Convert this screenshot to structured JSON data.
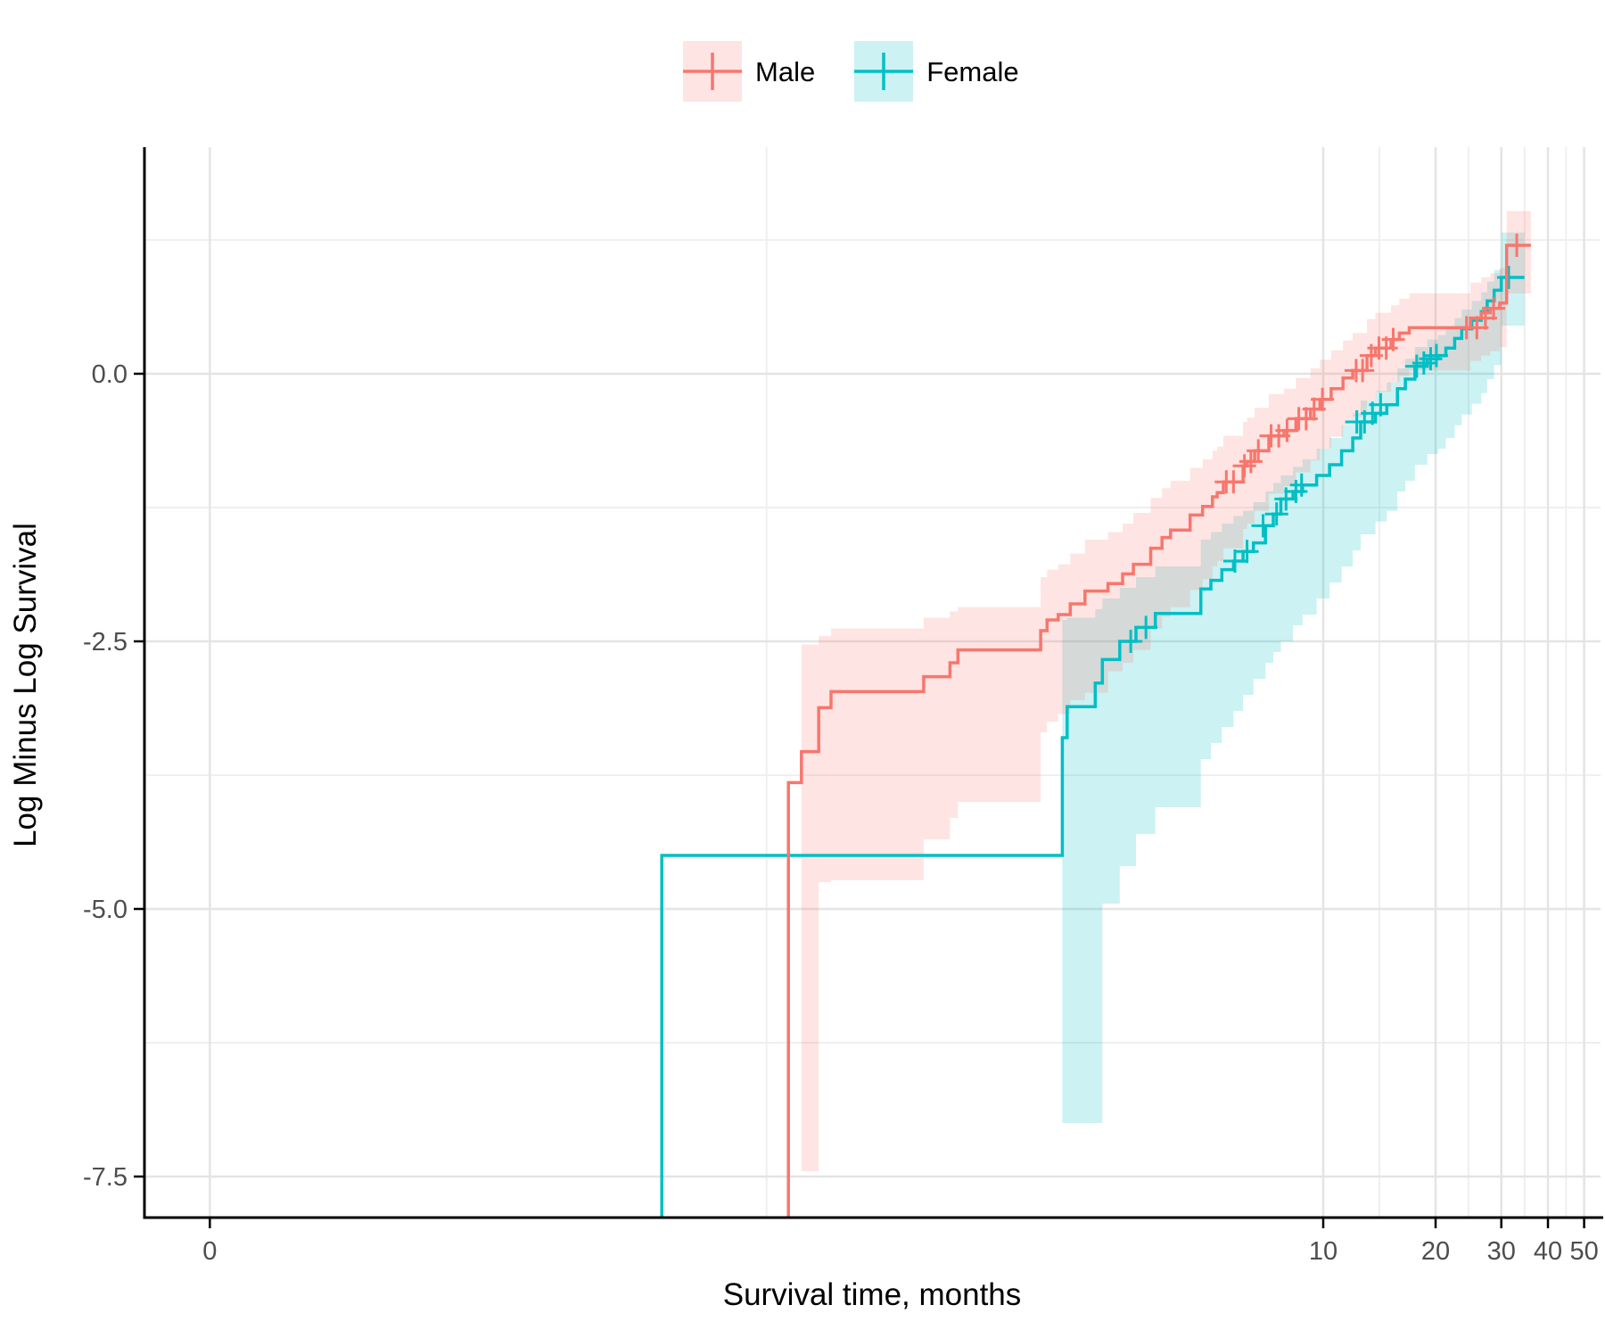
{
  "chart_data": {
    "type": "line",
    "subtype": "kaplan-meier-loglog-step",
    "title": "",
    "xlabel": "Survival time, months",
    "ylabel": "Log Minus Log Survival",
    "x_scale": "log10 (0 shown at pseudo-position)",
    "x_ticks": [
      {
        "label": "0",
        "t": 0.0104
      },
      {
        "label": "10",
        "t": 10
      },
      {
        "label": "20",
        "t": 20
      },
      {
        "label": "30",
        "t": 30
      },
      {
        "label": "40",
        "t": 40
      },
      {
        "label": "50",
        "t": 50
      }
    ],
    "x_minor_t": [
      0.3225,
      14.142,
      24.495,
      34.641,
      44.721
    ],
    "y_ticks": [
      {
        "label": "0.0",
        "v": 0.0
      },
      {
        "label": "-2.5",
        "v": -2.5
      },
      {
        "label": "-5.0",
        "v": -5.0
      },
      {
        "label": "-7.5",
        "v": -7.5
      }
    ],
    "y_minor_v": [
      1.25,
      -1.25,
      -3.75,
      -6.25
    ],
    "ylim": [
      -7.88,
      2.12
    ],
    "grid": "major+minor, light gray on white",
    "legend_position": "top-center",
    "colors": {
      "male_line": "#F8766D",
      "female_line": "#00BFC4",
      "male_band_key": "#FDE4E2",
      "female_band_key": "#CCF2F3",
      "grid_major": "#E4E4E4",
      "grid_minor": "#EFEFEF",
      "axis_line": "#000000",
      "tick_label": "#4D4D4D"
    },
    "legend": {
      "items": [
        {
          "label": "Male",
          "color": "#F8766D"
        },
        {
          "label": "Female",
          "color": "#00BFC4"
        }
      ]
    },
    "series": [
      {
        "name": "Male",
        "color": "#F8766D",
        "band_opacity": 0.2,
        "end_t": 36,
        "steps": [
          [
            0.369,
            -3.82,
            null,
            null
          ],
          [
            0.4,
            -3.53,
            -7.45,
            -2.53
          ],
          [
            0.445,
            -3.12,
            -4.75,
            -2.45
          ],
          [
            0.48,
            -2.97,
            -4.73,
            -2.38
          ],
          [
            0.85,
            -2.83,
            -4.35,
            -2.28
          ],
          [
            1.0,
            -2.7,
            -4.15,
            -2.22
          ],
          [
            1.05,
            -2.58,
            -4.0,
            -2.18
          ],
          [
            1.75,
            -2.4,
            -3.35,
            -1.9
          ],
          [
            1.82,
            -2.3,
            -3.25,
            -1.83
          ],
          [
            1.95,
            -2.25,
            -3.18,
            -1.78
          ],
          [
            2.1,
            -2.15,
            -3.05,
            -1.68
          ],
          [
            2.3,
            -2.03,
            -2.98,
            -1.55
          ],
          [
            2.65,
            -1.96,
            -2.78,
            -1.48
          ],
          [
            2.9,
            -1.87,
            -2.7,
            -1.4
          ],
          [
            3.1,
            -1.78,
            -2.58,
            -1.3
          ],
          [
            3.45,
            -1.63,
            -2.38,
            -1.16
          ],
          [
            3.7,
            -1.53,
            -2.27,
            -1.07
          ],
          [
            3.9,
            -1.46,
            -2.18,
            -1.0
          ],
          [
            4.4,
            -1.32,
            -2.02,
            -0.88
          ],
          [
            4.75,
            -1.24,
            -1.92,
            -0.8
          ],
          [
            5.05,
            -1.15,
            -1.8,
            -0.72
          ],
          [
            5.2,
            -1.11,
            -1.75,
            -0.68
          ],
          [
            5.4,
            -1.01,
            -1.63,
            -0.58
          ],
          [
            6.1,
            -0.86,
            -1.45,
            -0.45
          ],
          [
            6.25,
            -0.82,
            -1.4,
            -0.41
          ],
          [
            6.55,
            -0.72,
            -1.28,
            -0.32
          ],
          [
            7.15,
            -0.58,
            -1.12,
            -0.19
          ],
          [
            7.85,
            -0.53,
            -1.05,
            -0.14
          ],
          [
            8.45,
            -0.42,
            -0.92,
            -0.04
          ],
          [
            9.25,
            -0.33,
            -0.81,
            0.05
          ],
          [
            9.8,
            -0.24,
            -0.7,
            0.13
          ],
          [
            10.5,
            -0.14,
            -0.59,
            0.22
          ],
          [
            11.3,
            -0.04,
            -0.48,
            0.31
          ],
          [
            12.0,
            0.03,
            -0.4,
            0.38
          ],
          [
            13.1,
            0.17,
            -0.25,
            0.51
          ],
          [
            13.8,
            0.24,
            -0.17,
            0.57
          ],
          [
            15.2,
            0.32,
            -0.08,
            0.64
          ],
          [
            16.0,
            0.38,
            -0.02,
            0.7
          ],
          [
            17.0,
            0.43,
            0.03,
            0.75
          ],
          [
            24.8,
            0.52,
            0.12,
            0.85
          ],
          [
            26.5,
            0.57,
            0.17,
            0.9
          ],
          [
            28.0,
            0.61,
            0.21,
            0.94
          ],
          [
            29.7,
            0.66,
            0.25,
            0.99
          ],
          [
            31.0,
            1.2,
            0.75,
            1.52
          ]
        ],
        "censors": [
          [
            5.5,
            -1.01
          ],
          [
            5.75,
            -1.01
          ],
          [
            6.15,
            -0.86
          ],
          [
            6.4,
            -0.82
          ],
          [
            6.7,
            -0.72
          ],
          [
            7.25,
            -0.58
          ],
          [
            7.6,
            -0.58
          ],
          [
            8.0,
            -0.53
          ],
          [
            8.6,
            -0.42
          ],
          [
            9.0,
            -0.42
          ],
          [
            9.45,
            -0.33
          ],
          [
            9.95,
            -0.24
          ],
          [
            12.25,
            0.03
          ],
          [
            12.75,
            0.03
          ],
          [
            13.45,
            0.17
          ],
          [
            14.1,
            0.24
          ],
          [
            14.75,
            0.24
          ],
          [
            15.4,
            0.32
          ],
          [
            24.2,
            0.43
          ],
          [
            25.8,
            0.43
          ],
          [
            27.2,
            0.52
          ],
          [
            28.6,
            0.61
          ],
          [
            33.0,
            1.2
          ]
        ]
      },
      {
        "name": "Female",
        "color": "#00BFC4",
        "band_opacity": 0.2,
        "end_t": 34.6,
        "steps": [
          [
            0.169,
            -4.5,
            null,
            null
          ],
          [
            2.0,
            -3.4,
            -7.0,
            -2.3
          ],
          [
            2.06,
            -3.11,
            -7.0,
            -2.28
          ],
          [
            2.45,
            -2.89,
            -7.0,
            -2.2
          ],
          [
            2.56,
            -2.67,
            -4.95,
            -2.1
          ],
          [
            2.85,
            -2.5,
            -4.6,
            -2.0
          ],
          [
            3.15,
            -2.37,
            -4.3,
            -1.9
          ],
          [
            3.55,
            -2.24,
            -4.05,
            -1.8
          ],
          [
            4.7,
            -2.01,
            -3.6,
            -1.55
          ],
          [
            5.0,
            -1.93,
            -3.45,
            -1.48
          ],
          [
            5.35,
            -1.83,
            -3.3,
            -1.4
          ],
          [
            5.75,
            -1.75,
            -3.15,
            -1.33
          ],
          [
            6.1,
            -1.66,
            -3.0,
            -1.28
          ],
          [
            6.5,
            -1.58,
            -2.85,
            -1.2
          ],
          [
            7.0,
            -1.42,
            -2.7,
            -1.1
          ],
          [
            7.35,
            -1.31,
            -2.6,
            -1.02
          ],
          [
            7.7,
            -1.17,
            -2.5,
            -0.95
          ],
          [
            8.3,
            -1.1,
            -2.35,
            -0.87
          ],
          [
            8.8,
            -1.04,
            -2.25,
            -0.8
          ],
          [
            9.6,
            -0.95,
            -2.1,
            -0.7
          ],
          [
            10.4,
            -0.85,
            -1.95,
            -0.6
          ],
          [
            11.2,
            -0.72,
            -1.8,
            -0.48
          ],
          [
            12.0,
            -0.6,
            -1.65,
            -0.37
          ],
          [
            12.6,
            -0.45,
            -1.5,
            -0.25
          ],
          [
            13.8,
            -0.37,
            -1.38,
            -0.16
          ],
          [
            14.8,
            -0.29,
            -1.28,
            -0.08
          ],
          [
            15.8,
            -0.14,
            -1.1,
            0.05
          ],
          [
            16.6,
            -0.05,
            -1.0,
            0.14
          ],
          [
            17.6,
            0.07,
            -0.85,
            0.25
          ],
          [
            19.0,
            0.14,
            -0.75,
            0.32
          ],
          [
            20.3,
            0.17,
            -0.7,
            0.36
          ],
          [
            21.3,
            0.24,
            -0.6,
            0.43
          ],
          [
            22.5,
            0.33,
            -0.48,
            0.52
          ],
          [
            23.5,
            0.42,
            -0.38,
            0.6
          ],
          [
            25.0,
            0.5,
            -0.28,
            0.68
          ],
          [
            26.5,
            0.58,
            -0.18,
            0.76
          ],
          [
            27.5,
            0.68,
            -0.05,
            0.86
          ],
          [
            28.7,
            0.78,
            0.08,
            0.97
          ],
          [
            30.0,
            0.9,
            0.45,
            1.32
          ]
        ],
        "censors": [
          [
            3.05,
            -2.5
          ],
          [
            3.35,
            -2.37
          ],
          [
            5.8,
            -1.75
          ],
          [
            6.25,
            -1.66
          ],
          [
            6.9,
            -1.42
          ],
          [
            7.5,
            -1.31
          ],
          [
            7.95,
            -1.17
          ],
          [
            8.45,
            -1.1
          ],
          [
            8.75,
            -1.04
          ],
          [
            12.3,
            -0.45
          ],
          [
            12.9,
            -0.45
          ],
          [
            13.55,
            -0.37
          ],
          [
            14.25,
            -0.29
          ],
          [
            17.8,
            0.07
          ],
          [
            18.6,
            0.1
          ],
          [
            19.4,
            0.14
          ],
          [
            20.1,
            0.17
          ],
          [
            31.4,
            0.9
          ]
        ]
      }
    ]
  }
}
